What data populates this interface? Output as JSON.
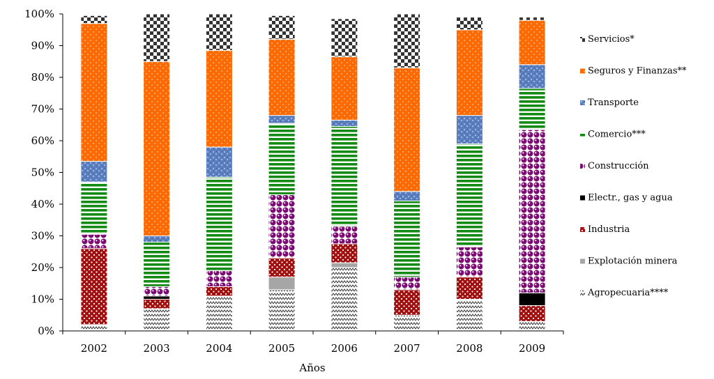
{
  "chart_data": {
    "type": "bar",
    "stacked": true,
    "percent": true,
    "title": "",
    "xlabel": "Años",
    "ylabel": "",
    "ylim": [
      0,
      100
    ],
    "yticks": [
      "0%",
      "10%",
      "20%",
      "30%",
      "40%",
      "50%",
      "60%",
      "70%",
      "80%",
      "90%",
      "100%"
    ],
    "categories": [
      "2002",
      "2003",
      "2004",
      "2005",
      "2006",
      "2007",
      "2008",
      "2009"
    ],
    "legend_position": "right",
    "grid": false,
    "series": [
      {
        "name": "Agropecuaria****",
        "color": "#ffffff",
        "pattern": "zigzag",
        "values": [
          2,
          7,
          11,
          13,
          20,
          5,
          10,
          3
        ]
      },
      {
        "name": "Explotación minera",
        "color": "#a6a6a6",
        "pattern": "solid",
        "values": [
          0,
          0,
          0,
          4,
          1.5,
          0,
          0,
          0
        ]
      },
      {
        "name": "Industria",
        "color": "#a10f0f",
        "pattern": "dots-dark",
        "values": [
          24,
          3,
          3,
          6,
          6,
          8,
          7,
          5
        ]
      },
      {
        "name": "Electr., gas y agua",
        "color": "#000000",
        "pattern": "solid",
        "values": [
          0,
          1,
          0,
          0,
          0,
          0,
          0,
          4
        ]
      },
      {
        "name": "Construcción",
        "color": "#7b0a73",
        "pattern": "circles",
        "values": [
          4.5,
          3,
          5,
          20,
          5.5,
          4,
          9.5,
          51.5
        ]
      },
      {
        "name": "Comercio***",
        "color": "#138a13",
        "pattern": "stripes",
        "values": [
          16.5,
          14,
          29.5,
          22.5,
          31.5,
          24,
          32.5,
          13
        ]
      },
      {
        "name": "Transporte",
        "color": "#5b7fbf",
        "pattern": "mottled",
        "values": [
          6.5,
          2,
          9.5,
          2.5,
          2,
          3,
          9,
          7.5
        ]
      },
      {
        "name": "Seguros y Finanzas**",
        "color": "#ff6a00",
        "pattern": "dots-light",
        "values": [
          43.5,
          55,
          30.5,
          24,
          20,
          39,
          27,
          14
        ]
      },
      {
        "name": "Servicios*",
        "color": "#333333",
        "pattern": "checker",
        "values": [
          2.5,
          15,
          11.5,
          7.5,
          12,
          17,
          4,
          1
        ]
      }
    ]
  }
}
